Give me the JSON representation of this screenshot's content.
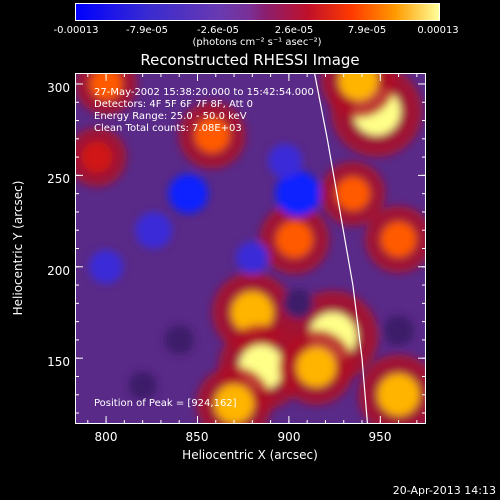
{
  "colorbar": {
    "ticks": [
      "-0.00013",
      "-7.9e-05",
      "-2.6e-05",
      "2.6e-05",
      "7.9e-05",
      "0.00013"
    ],
    "units": "(photons cm⁻² s⁻¹ asec⁻²)"
  },
  "info": {
    "time": "27-May-2002 15:38:20.000 to 15:42:54.000",
    "detectors": "Detectors: 4F 5F 6F 7F 8F, Att 0",
    "energy": "Energy Range: 25.0 - 50.0 keV",
    "clean": "Clean     Total counts: 7.08E+03"
  },
  "peak_label": "Position of Peak = [924,162]",
  "timestamp": "20-Apr-2013 14:13",
  "chart_data": {
    "type": "heatmap",
    "title": "Reconstructed RHESSI Image",
    "xlabel": "Heliocentric X (arcsec)",
    "ylabel": "Heliocentric Y (arcsec)",
    "xlim": [
      783,
      975
    ],
    "ylim": [
      114,
      306
    ],
    "xticks": [
      "800",
      "850",
      "900",
      "950"
    ],
    "yticks": [
      "150",
      "200",
      "250",
      "300"
    ],
    "value_range": [
      -0.00013,
      0.00013
    ],
    "peak": [
      924,
      162
    ],
    "limb_curve": [
      [
        914,
        306
      ],
      [
        921,
        270
      ],
      [
        928,
        230
      ],
      [
        935,
        190
      ],
      [
        940,
        150
      ],
      [
        943,
        114
      ]
    ],
    "blobs": [
      {
        "x": 948,
        "y": 285,
        "v": 1.0
      },
      {
        "x": 938,
        "y": 302,
        "v": 0.7
      },
      {
        "x": 935,
        "y": 240,
        "v": 0.5
      },
      {
        "x": 924,
        "y": 162,
        "v": 1.0
      },
      {
        "x": 903,
        "y": 215,
        "v": 0.6
      },
      {
        "x": 880,
        "y": 175,
        "v": 0.8
      },
      {
        "x": 885,
        "y": 145,
        "v": 0.9
      },
      {
        "x": 915,
        "y": 145,
        "v": 0.7
      },
      {
        "x": 870,
        "y": 125,
        "v": 0.7
      },
      {
        "x": 960,
        "y": 130,
        "v": 0.8
      },
      {
        "x": 960,
        "y": 215,
        "v": 0.55
      },
      {
        "x": 858,
        "y": 272,
        "v": 0.55
      },
      {
        "x": 795,
        "y": 260,
        "v": 0.4
      },
      {
        "x": 800,
        "y": 300,
        "v": 0.45
      },
      {
        "x": 845,
        "y": 240,
        "v": -0.7
      },
      {
        "x": 826,
        "y": 220,
        "v": -0.6
      },
      {
        "x": 905,
        "y": 240,
        "v": -0.9
      },
      {
        "x": 898,
        "y": 258,
        "v": -0.5
      },
      {
        "x": 800,
        "y": 200,
        "v": -0.5
      },
      {
        "x": 880,
        "y": 205,
        "v": -0.45
      },
      {
        "x": 840,
        "y": 160,
        "v": -0.35
      },
      {
        "x": 960,
        "y": 165,
        "v": -0.4
      },
      {
        "x": 820,
        "y": 135,
        "v": -0.3
      },
      {
        "x": 905,
        "y": 180,
        "v": -0.35
      }
    ]
  }
}
